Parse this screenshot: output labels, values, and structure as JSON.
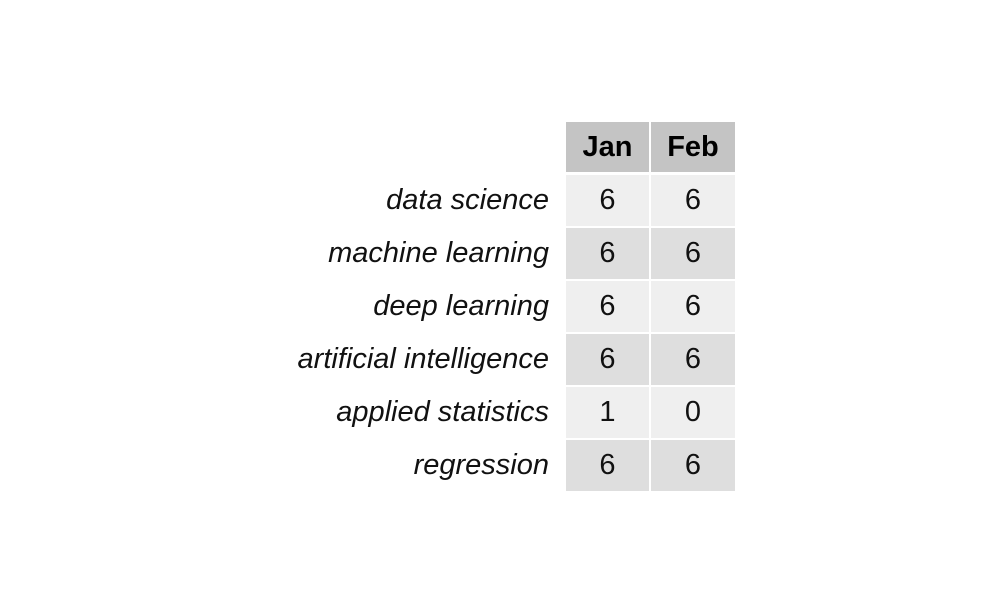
{
  "chart_data": {
    "type": "table",
    "columns": [
      "Jan",
      "Feb"
    ],
    "rows": [
      {
        "label": "data science",
        "values": [
          6,
          6
        ]
      },
      {
        "label": "machine learning",
        "values": [
          6,
          6
        ]
      },
      {
        "label": "deep learning",
        "values": [
          6,
          6
        ]
      },
      {
        "label": "artificial intelligence",
        "values": [
          6,
          6
        ]
      },
      {
        "label": "applied statistics",
        "values": [
          1,
          0
        ]
      },
      {
        "label": "regression",
        "values": [
          6,
          6
        ]
      }
    ],
    "colors": {
      "header_bg": "#c4c4c4",
      "row_light": "#efefef",
      "row_dark": "#dedede"
    }
  }
}
